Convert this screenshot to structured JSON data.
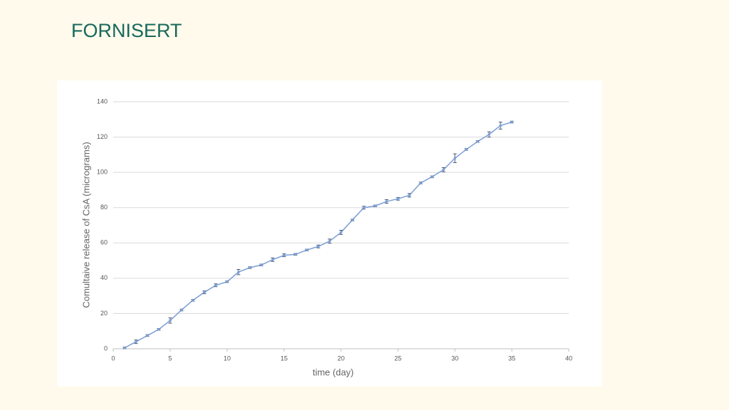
{
  "heading": "FORNISERT",
  "chart_data": {
    "type": "line",
    "xlabel": "time (day)",
    "ylabel": "Comultaive release of CsA (micrograms)",
    "x": [
      1,
      2,
      3,
      4,
      5,
      6,
      7,
      8,
      9,
      10,
      11,
      12,
      13,
      14,
      15,
      16,
      17,
      18,
      19,
      20,
      21,
      22,
      23,
      24,
      25,
      26,
      27,
      28,
      29,
      30,
      31,
      32,
      33,
      34,
      35
    ],
    "values": [
      0.5,
      4,
      7.5,
      11,
      16,
      22,
      27.5,
      32,
      36,
      38,
      43.5,
      46,
      47.5,
      50.5,
      53,
      53.5,
      56,
      58,
      61,
      66,
      73,
      80,
      81,
      83.5,
      85,
      87,
      94,
      97.5,
      101.5,
      108,
      113,
      117.5,
      121.5,
      126.5,
      128.5
    ],
    "errors": [
      0.5,
      1,
      0.5,
      0.5,
      1.5,
      0.5,
      0.5,
      0.8,
      0.8,
      0.5,
      1.5,
      0.5,
      0.5,
      1,
      0.8,
      0.5,
      0.5,
      0.8,
      1.2,
      1.2,
      0.5,
      0.8,
      0.5,
      1,
      0.8,
      1,
      0.5,
      0.5,
      1.2,
      2.5,
      0.5,
      0.5,
      1.5,
      2,
      0.5
    ],
    "color": "#7b9fd6",
    "xlim": [
      0,
      40
    ],
    "xticks": [
      0,
      5,
      10,
      15,
      20,
      25,
      30,
      35,
      40
    ],
    "ylim": [
      0,
      140
    ],
    "yticks": [
      0,
      20,
      40,
      60,
      80,
      100,
      120,
      140
    ],
    "grid": true
  }
}
